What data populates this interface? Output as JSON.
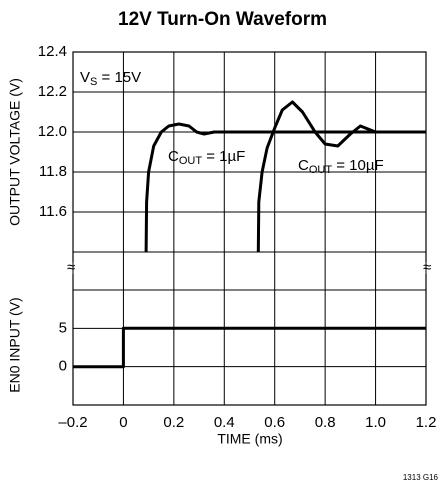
{
  "chart_data": [
    {
      "type": "line",
      "title": "12V Turn-On Waveform",
      "ylabel": "OUTPUT VOLTAGE (V)",
      "xlim": [
        -0.2,
        1.2
      ],
      "ylim": [
        11.4,
        12.4
      ],
      "yticks": [
        12.4,
        12.2,
        {
          "value": 12.0,
          "label": "12.0"
        },
        11.8,
        11.6
      ],
      "grid": true,
      "series": [
        {
          "name": "1µF",
          "color": "#000000",
          "x": [
            0.09,
            0.092,
            0.1,
            0.12,
            0.15,
            0.18,
            0.22,
            0.26,
            0.29,
            0.32,
            0.36,
            1.2
          ],
          "values": [
            11.4,
            11.65,
            11.8,
            11.93,
            12.0,
            12.03,
            12.04,
            12.03,
            12.0,
            11.99,
            12.0,
            12.0
          ]
        },
        {
          "name": "10µF",
          "color": "#000000",
          "x": [
            0.535,
            0.537,
            0.55,
            0.57,
            0.6,
            0.63,
            0.67,
            0.71,
            0.76,
            0.8,
            0.85,
            0.9,
            0.94,
            0.98,
            1.0,
            1.2
          ],
          "values": [
            11.4,
            11.65,
            11.8,
            11.92,
            12.02,
            12.11,
            12.15,
            12.1,
            12.0,
            11.94,
            11.93,
            11.99,
            12.03,
            12.01,
            12.0,
            12.0
          ]
        }
      ],
      "annotations": [
        {
          "parts": [
            "V",
            "S",
            " = 15V"
          ]
        },
        {
          "parts": [
            "C",
            "OUT",
            " = 1µF"
          ]
        },
        {
          "parts": [
            "C",
            "OUT",
            " = 10µF"
          ]
        }
      ]
    },
    {
      "type": "line",
      "ylabel": "EN0 INPUT (V)",
      "xlabel": "TIME (ms)",
      "xlim": [
        -0.2,
        1.2
      ],
      "xticks": [
        {
          "value": -0.2,
          "label": "–0.2"
        },
        0,
        0.2,
        0.4,
        0.6,
        0.8,
        {
          "value": 1.0,
          "label": "1.0"
        },
        1.2
      ],
      "ylim": [
        -5,
        10
      ],
      "yticks": [
        5,
        0
      ],
      "grid": true,
      "series": [
        {
          "name": "EN0",
          "color": "#000000",
          "x": [
            -0.2,
            0,
            0,
            1.2
          ],
          "values": [
            0,
            0,
            5,
            5
          ]
        }
      ],
      "footnote": "1313 G16"
    }
  ]
}
